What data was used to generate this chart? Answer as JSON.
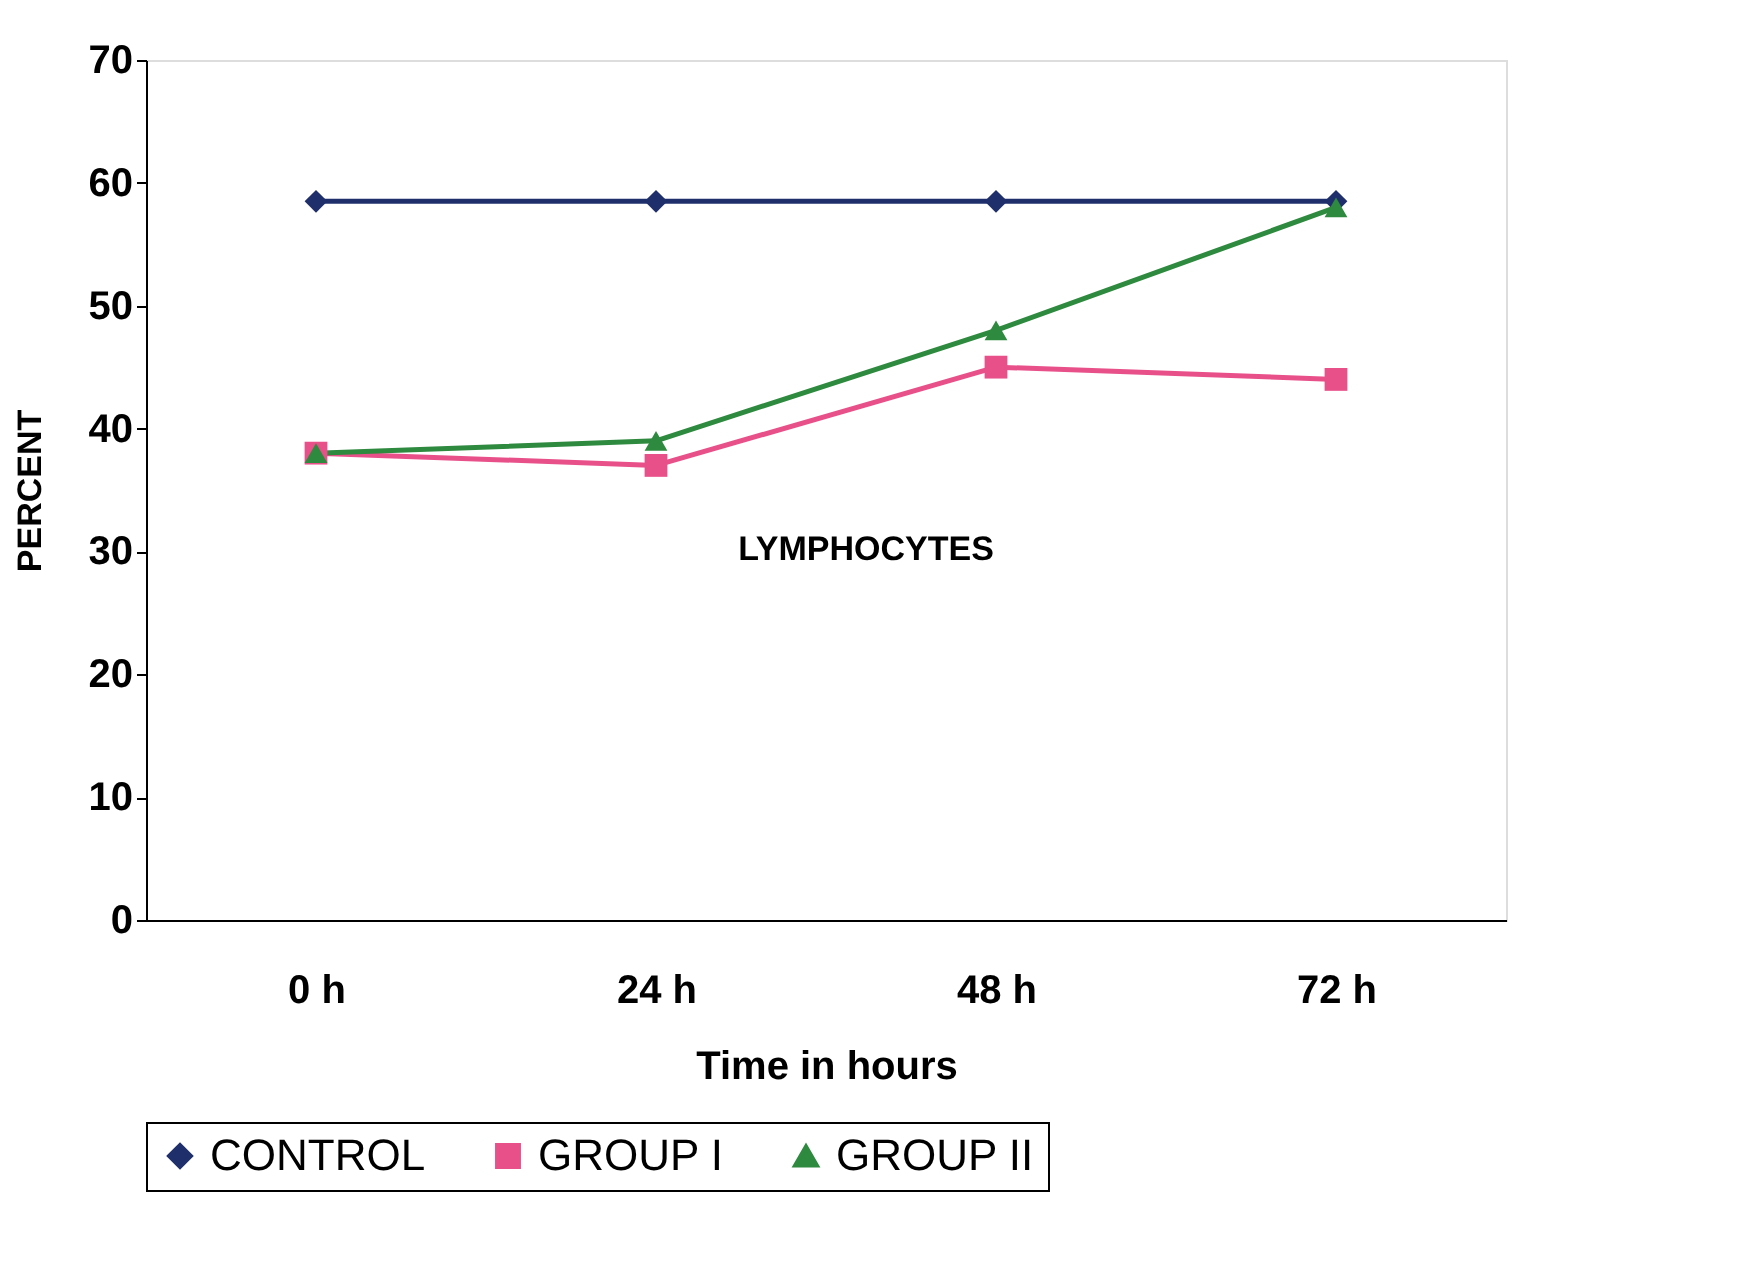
{
  "chart_data": {
    "type": "line",
    "xlabel": "Time in hours",
    "ylabel": "PERCENT",
    "annotations": [
      "LYMPHOCYTES"
    ],
    "categories": [
      "0 h",
      "24 h",
      "48 h",
      "72 h"
    ],
    "series": [
      {
        "name": "CONTROL",
        "color": "#1f2f6b",
        "marker": "diamond",
        "values": [
          58.5,
          58.5,
          58.5,
          58.5
        ]
      },
      {
        "name": "GROUP I",
        "color": "#e8508a",
        "marker": "square",
        "values": [
          38,
          37,
          45,
          44
        ]
      },
      {
        "name": "GROUP II",
        "color": "#2e8a3e",
        "marker": "triangle",
        "values": [
          38,
          39,
          48,
          58
        ]
      }
    ],
    "ylim": [
      0,
      70
    ],
    "yticks": [
      0,
      10,
      20,
      30,
      40,
      50,
      60,
      70
    ],
    "grid": false,
    "legend": "bottom",
    "line_style": "solid"
  }
}
